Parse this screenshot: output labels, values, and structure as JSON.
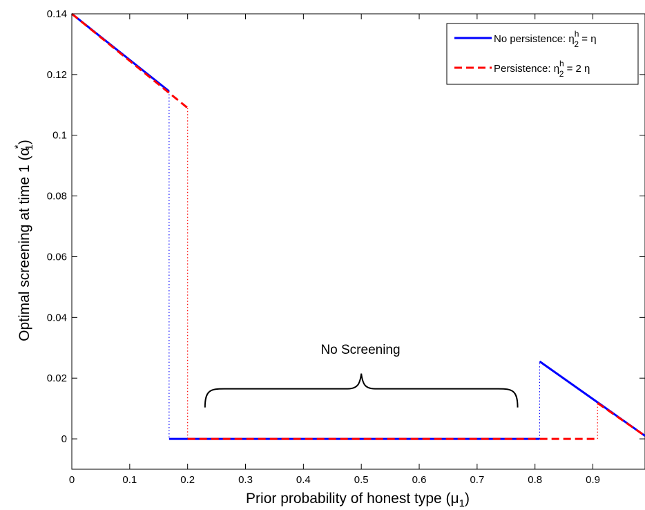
{
  "chart_data": {
    "type": "line",
    "xlabel": "Prior probability of honest type (",
    "xlabel_symbol": "μ",
    "xlabel_sub": "1",
    "xlabel_end": ")",
    "ylabel": "Optimal screening at time 1 (",
    "ylabel_symbol": "α",
    "ylabel_sup": "*",
    "ylabel_sub": "1",
    "ylabel_end": ")",
    "xlim": [
      0,
      0.99
    ],
    "ylim": [
      -0.01,
      0.14
    ],
    "x_ticks": [
      0,
      0.1,
      0.2,
      0.3,
      0.4,
      0.5,
      0.6,
      0.7,
      0.8,
      0.9
    ],
    "x_tick_labels": [
      "0",
      "0.1",
      "0.2",
      "0.3",
      "0.4",
      "0.5",
      "0.6",
      "0.7",
      "0.8",
      "0.9"
    ],
    "y_ticks": [
      0,
      0.02,
      0.04,
      0.06,
      0.08,
      0.1,
      0.12,
      0.14
    ],
    "y_tick_labels": [
      "0",
      "0.02",
      "0.04",
      "0.06",
      "0.08",
      "0.1",
      "0.12",
      "0.14"
    ],
    "grid": false,
    "legend_position": "top-right",
    "series": [
      {
        "legend_main": "No persistence: η",
        "legend_sup": "h",
        "legend_sub": "2",
        "legend_tail": " = η",
        "color": "#0000ff",
        "style": "solid",
        "segments": [
          [
            [
              0,
              0.14
            ],
            [
              0.168,
              0.1145
            ]
          ],
          [
            [
              0.168,
              0.0
            ],
            [
              0.808,
              0.0
            ]
          ],
          [
            [
              0.808,
              0.0255
            ],
            [
              0.99,
              0.001
            ]
          ]
        ],
        "jumps": [
          [
            [
              0.168,
              0.1145
            ],
            [
              0.168,
              0.0
            ]
          ],
          [
            [
              0.808,
              0.0
            ],
            [
              0.808,
              0.0255
            ]
          ]
        ]
      },
      {
        "legend_main": "Persistence: η",
        "legend_sup": "h",
        "legend_sub": "2",
        "legend_tail": " = 2 η",
        "color": "#ff0000",
        "style": "dashed",
        "segments": [
          [
            [
              0,
              0.14
            ],
            [
              0.2,
              0.109
            ]
          ],
          [
            [
              0.2,
              0.0
            ],
            [
              0.908,
              0.0
            ]
          ],
          [
            [
              0.908,
              0.0118
            ],
            [
              0.99,
              0.001
            ]
          ]
        ],
        "jumps": [
          [
            [
              0.2,
              0.109
            ],
            [
              0.2,
              0.0
            ]
          ],
          [
            [
              0.908,
              0.0
            ],
            [
              0.908,
              0.0118
            ]
          ]
        ]
      }
    ],
    "annotation": {
      "text": "No Screening",
      "brace_x": [
        0.23,
        0.77
      ],
      "brace_y": 0.0165
    }
  }
}
